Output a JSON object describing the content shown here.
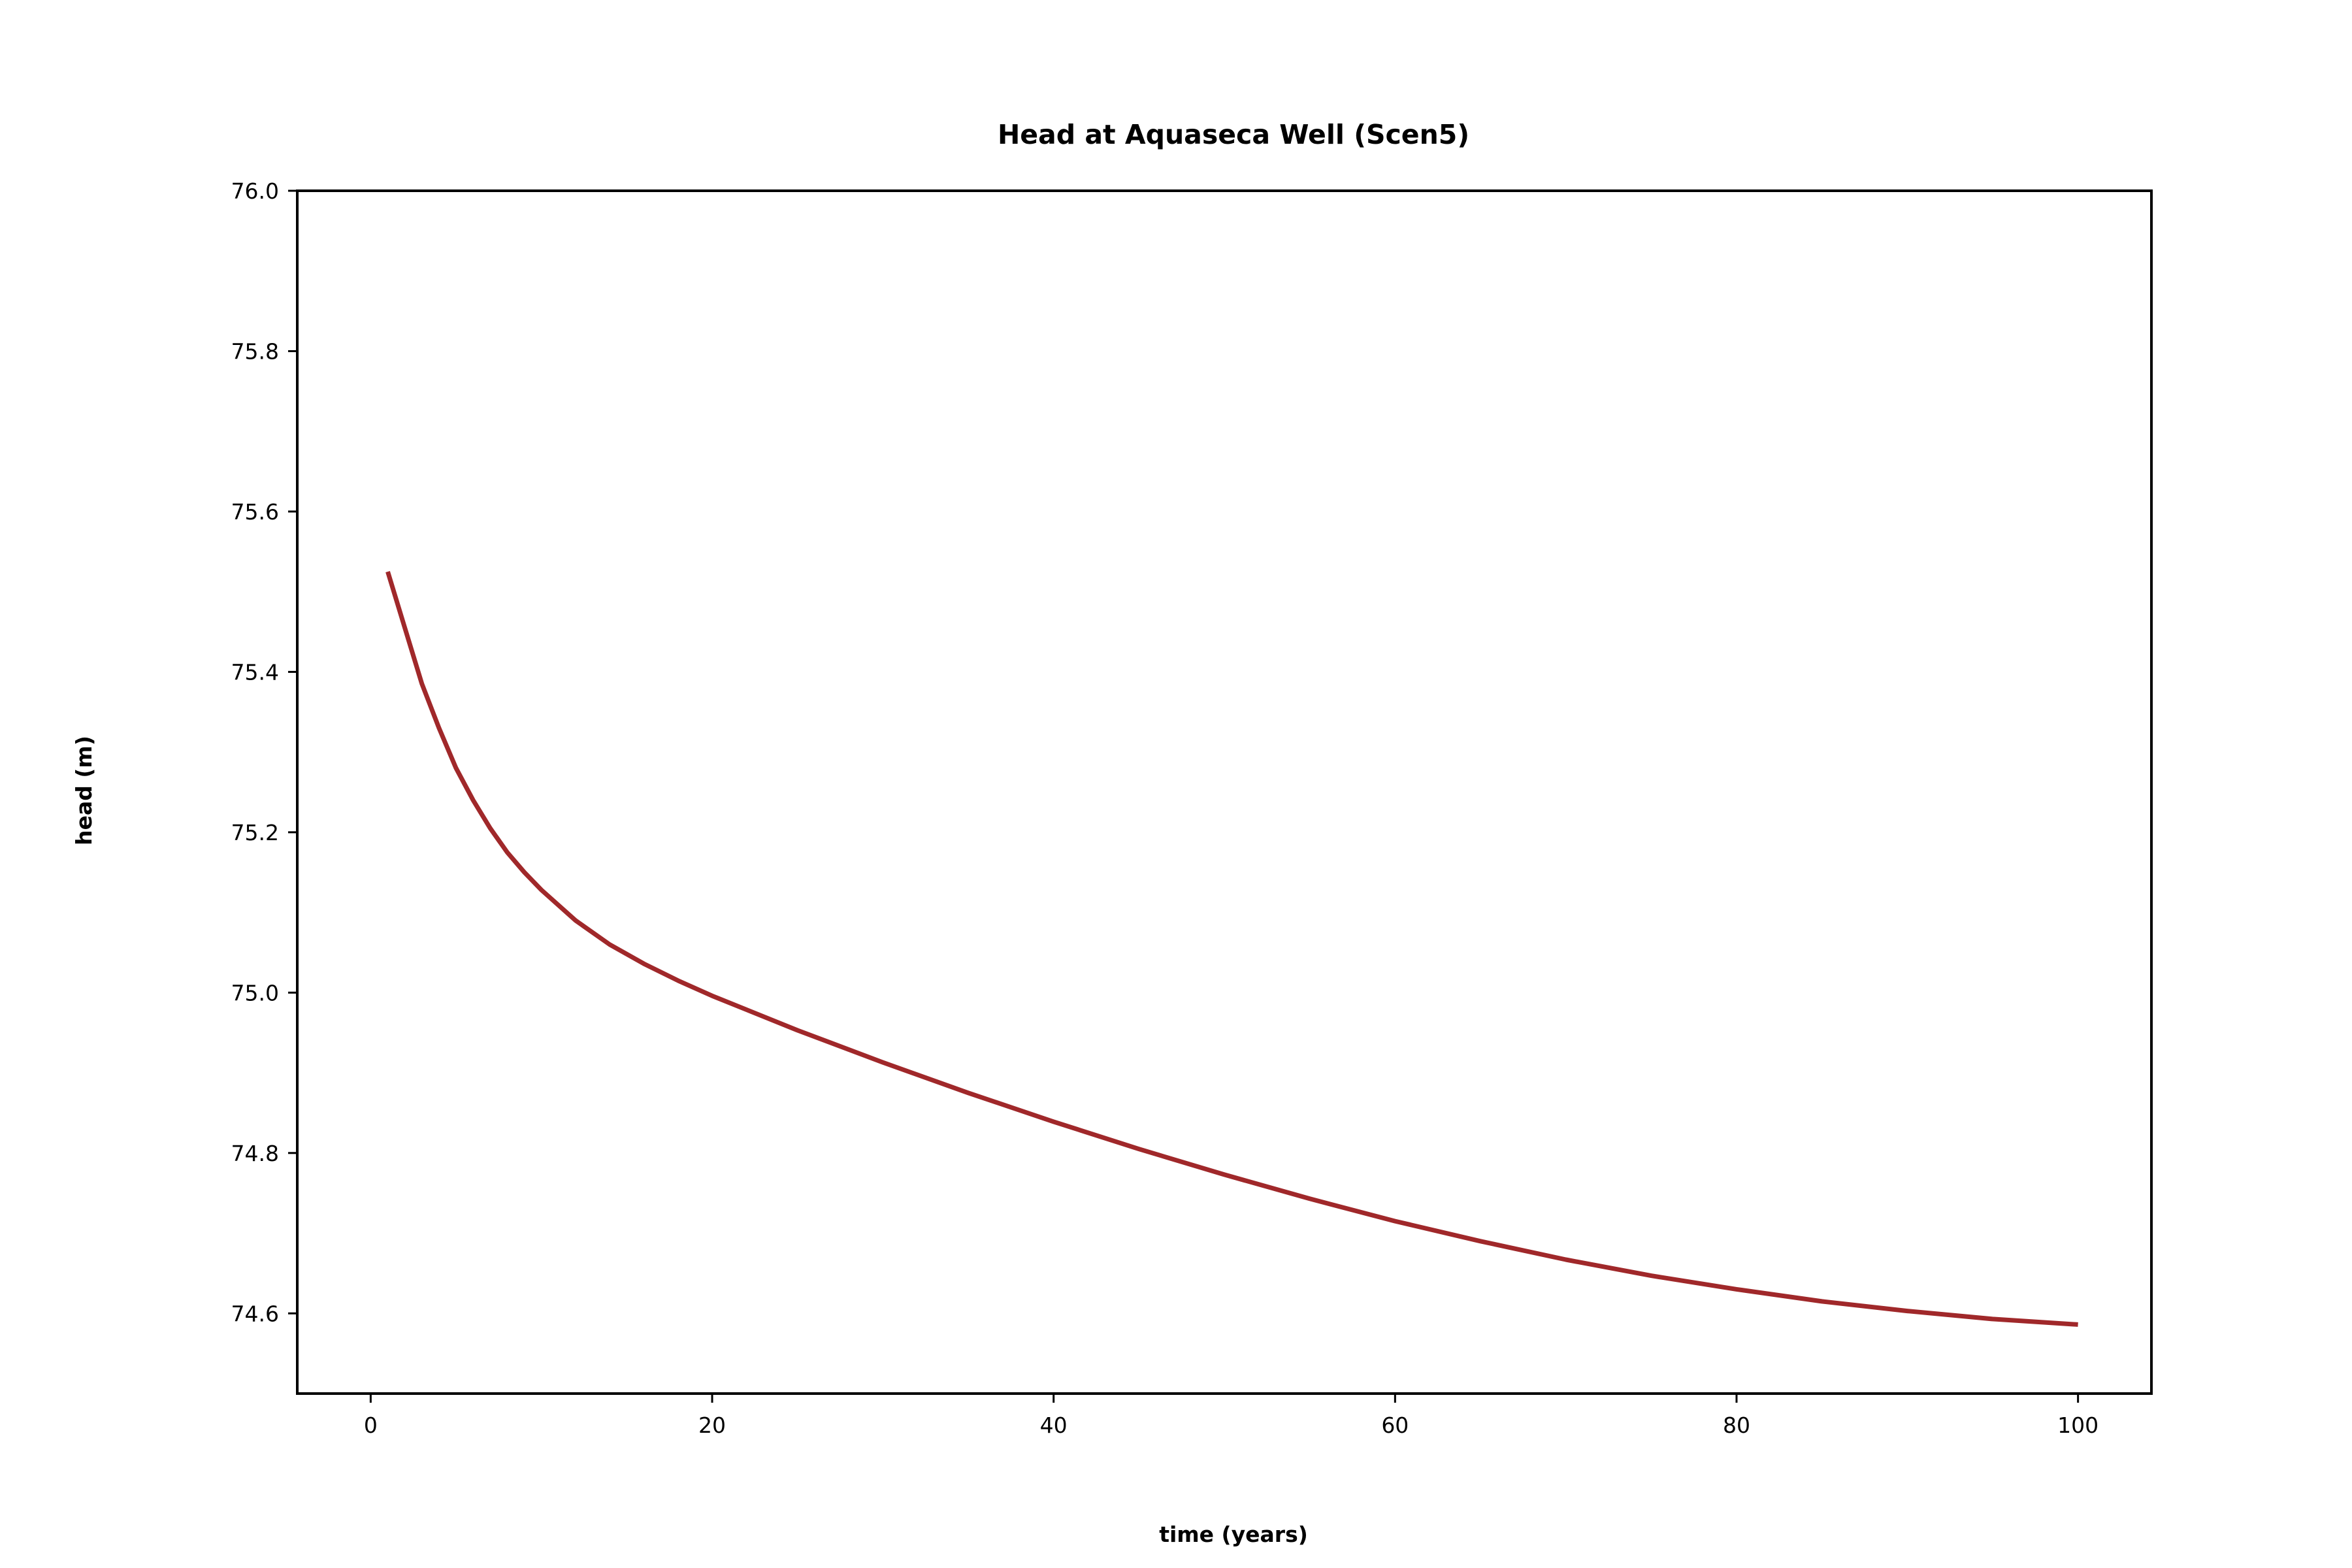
{
  "chart_data": {
    "type": "line",
    "title": "Head at Aquaseca Well (Scen5)",
    "xlabel": "time (years)",
    "ylabel": "head (m)",
    "xlim": [
      -4.3,
      104.3
    ],
    "ylim": [
      74.5,
      76.0
    ],
    "xticks": [
      0,
      20,
      40,
      60,
      80,
      100
    ],
    "xtick_labels": [
      "0",
      "20",
      "40",
      "60",
      "80",
      "100"
    ],
    "yticks": [
      74.6,
      74.8,
      75.0,
      75.2,
      75.4,
      75.6,
      75.8,
      76.0
    ],
    "ytick_labels": [
      "74.6",
      "74.8",
      "75.0",
      "75.2",
      "75.4",
      "75.6",
      "75.8",
      "76.0"
    ],
    "grid": false,
    "legend": "none",
    "series": [
      {
        "color": "#a0282a",
        "x": [
          1,
          2,
          3,
          4,
          5,
          6,
          7,
          8,
          9,
          10,
          12,
          14,
          16,
          18,
          20,
          25,
          30,
          35,
          40,
          45,
          50,
          55,
          60,
          65,
          70,
          75,
          80,
          85,
          90,
          95,
          100
        ],
        "y": [
          75.525,
          75.455,
          75.385,
          75.33,
          75.28,
          75.24,
          75.205,
          75.175,
          75.15,
          75.128,
          75.09,
          75.06,
          75.036,
          75.015,
          74.996,
          74.953,
          74.913,
          74.875,
          74.839,
          74.805,
          74.773,
          74.743,
          74.715,
          74.69,
          74.667,
          74.647,
          74.63,
          74.615,
          74.603,
          74.593,
          74.586
        ]
      }
    ]
  }
}
